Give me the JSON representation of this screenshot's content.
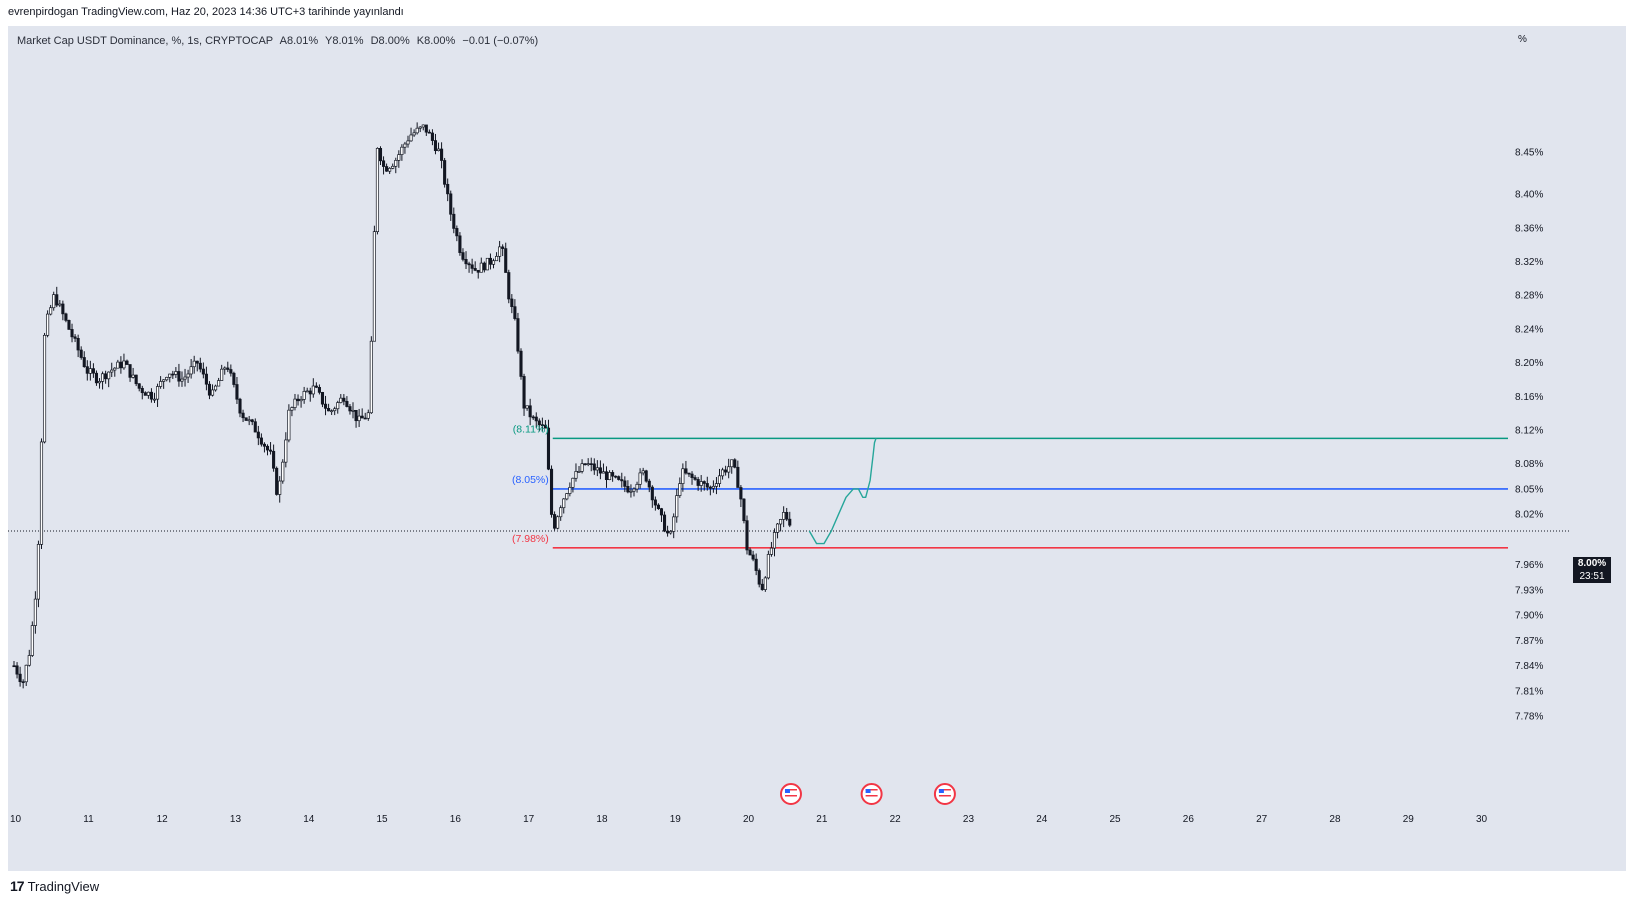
{
  "caption": "evrenpirdogan TradingView.com, Haz 20, 2023 14:36 UTC+3 tarihinde yayınlandı",
  "legend": {
    "symbol": "Market Cap USDT Dominance, %, 1s, CRYPTOCAP",
    "open": "A8.01%",
    "high": "Y8.01%",
    "low": "D8.00%",
    "close": "K8.00%",
    "change": "−0.01 (−0.07%)"
  },
  "brand": {
    "logo": "17",
    "name": "TradingView"
  },
  "price_tag": {
    "price": "8.00%",
    "countdown": "23:51"
  },
  "colors": {
    "background": "#e1e5ee",
    "candle": "#131722",
    "green_level": "#089981",
    "blue_level": "#2962ff",
    "red_level": "#f23645",
    "projection": "#26a69a"
  },
  "icons": [
    "us-flag-event-icon",
    "us-flag-event-icon",
    "us-flag-event-icon"
  ],
  "chart_data": {
    "type": "line",
    "title": "",
    "y_unit": "%",
    "y_range": [
      7.765,
      8.545
    ],
    "y_ticks": [
      "8.45%",
      "8.40%",
      "8.36%",
      "8.32%",
      "8.28%",
      "8.24%",
      "8.20%",
      "8.16%",
      "8.12%",
      "8.08%",
      "8.05%",
      "8.02%",
      "7.96%",
      "7.93%",
      "7.90%",
      "7.87%",
      "7.84%",
      "7.81%",
      "7.78%"
    ],
    "x_range": [
      10,
      30.5
    ],
    "x_ticks": [
      "10",
      "11",
      "12",
      "13",
      "14",
      "15",
      "16",
      "17",
      "18",
      "19",
      "20",
      "21",
      "22",
      "23",
      "24",
      "25",
      "26",
      "27",
      "28",
      "29",
      "30"
    ],
    "grid": false,
    "levels": [
      {
        "label": "(8.11%)",
        "value": 8.11,
        "from_day": 17.35,
        "color_key": "green_level"
      },
      {
        "label": "(8.05%)",
        "value": 8.05,
        "from_day": 17.35,
        "color_key": "blue_level"
      },
      {
        "label": "(7.98%)",
        "value": 7.98,
        "from_day": 17.35,
        "color_key": "red_level"
      }
    ],
    "current_price": 8.0,
    "price_path": {
      "days": [
        10,
        10.12,
        10.22,
        10.32,
        10.42,
        10.55,
        10.7,
        10.85,
        11,
        11.15,
        11.3,
        11.5,
        11.7,
        11.9,
        12.1,
        12.3,
        12.5,
        12.7,
        12.9,
        13.1,
        13.3,
        13.5,
        13.6,
        13.75,
        13.9,
        14.1,
        14.3,
        14.5,
        14.7,
        14.85,
        14.95,
        15.05,
        15.2,
        15.4,
        15.6,
        15.8,
        15.95,
        16.1,
        16.3,
        16.5,
        16.65,
        16.75,
        16.85,
        16.95,
        17.1,
        17.25,
        17.35,
        17.45,
        17.6,
        17.8,
        18.0,
        18.2,
        18.4,
        18.6,
        18.8,
        18.95,
        19.1,
        19.3,
        19.5,
        19.65,
        19.8,
        19.9,
        20.0,
        20.1,
        20.2,
        20.3,
        20.4,
        20.5,
        20.6
      ],
      "values": [
        7.84,
        7.82,
        7.86,
        7.95,
        8.24,
        8.28,
        8.25,
        8.22,
        8.19,
        8.18,
        8.19,
        8.2,
        8.17,
        8.16,
        8.19,
        8.18,
        8.2,
        8.16,
        8.2,
        8.14,
        8.12,
        8.09,
        8.04,
        8.14,
        8.16,
        8.17,
        8.14,
        8.16,
        8.13,
        8.14,
        8.46,
        8.43,
        8.44,
        8.47,
        8.48,
        8.45,
        8.38,
        8.33,
        8.31,
        8.32,
        8.34,
        8.28,
        8.24,
        8.15,
        8.13,
        8.12,
        8.0,
        8.03,
        8.06,
        8.08,
        8.07,
        8.06,
        8.05,
        8.07,
        8.02,
        7.99,
        8.07,
        8.06,
        8.05,
        8.07,
        8.08,
        8.05,
        7.98,
        7.96,
        7.93,
        7.97,
        8.0,
        8.02,
        8.01
      ]
    },
    "projection_path": {
      "days": [
        20.85,
        20.95,
        21.05,
        21.15,
        21.25,
        21.35,
        21.45,
        21.52,
        21.58,
        21.62,
        21.68,
        21.72,
        21.74,
        21.76
      ],
      "values": [
        8.0,
        7.985,
        7.985,
        8.0,
        8.02,
        8.04,
        8.05,
        8.05,
        8.04,
        8.04,
        8.06,
        8.09,
        8.105,
        8.11
      ]
    },
    "event_days": [
      20.6,
      21.7,
      22.7
    ]
  }
}
